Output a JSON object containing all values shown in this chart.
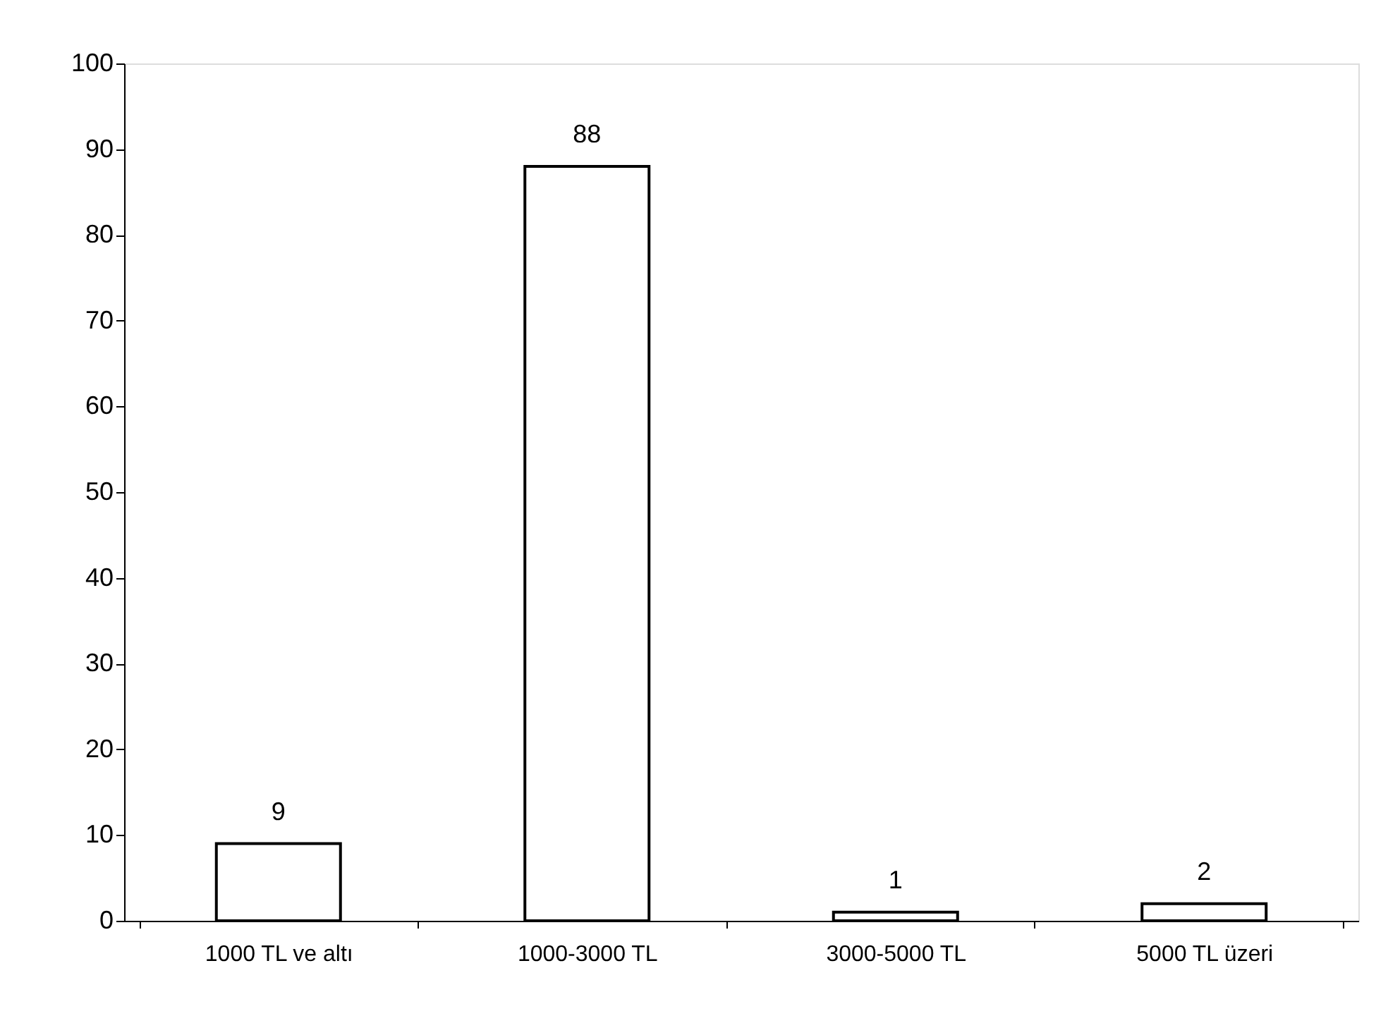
{
  "chart_data": {
    "type": "bar",
    "categories": [
      "1000 TL ve altı",
      "1000-3000 TL",
      "3000-5000 TL",
      "5000 TL üzeri"
    ],
    "values": [
      9,
      88,
      1,
      2
    ],
    "color": "#ffffff",
    "ylim": [
      0,
      100
    ],
    "yticks": [
      0,
      10,
      20,
      30,
      40,
      50,
      60,
      70,
      80,
      90,
      100
    ],
    "data_labels": true,
    "grid": false
  }
}
